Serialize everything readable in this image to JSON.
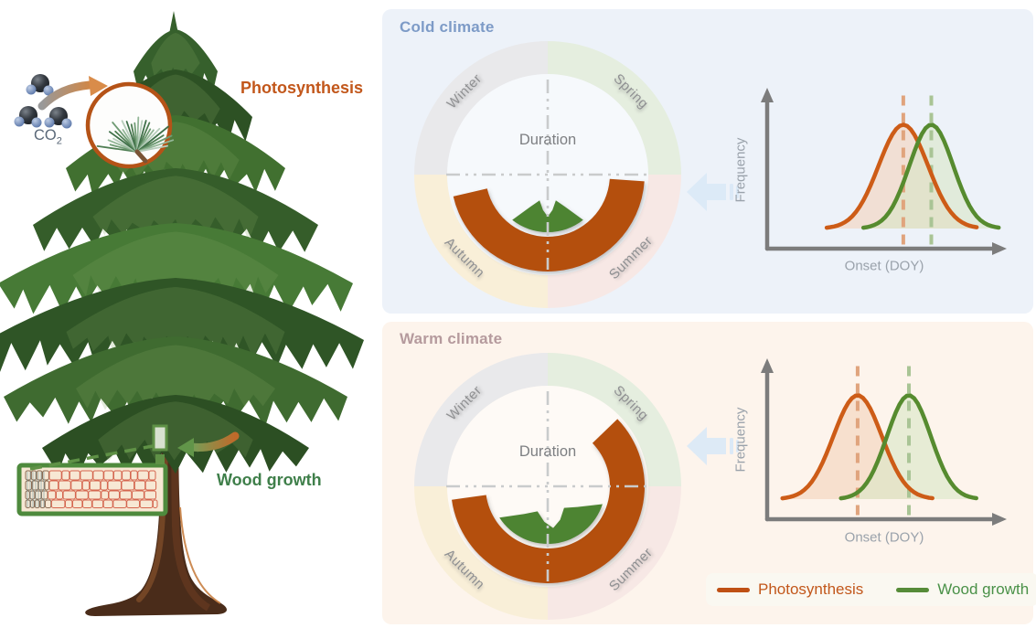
{
  "figure": {
    "left_illustration": {
      "co2": {
        "main": "CO",
        "sub": "2"
      },
      "photosynthesis_label": "Photosynthesis",
      "wood_growth_label": "Wood growth",
      "label_colors": {
        "photosynthesis": "#c2571b",
        "wood_growth": "#3f7f4a",
        "co2": "#5a6878"
      }
    },
    "panels": [
      {
        "id": "cold",
        "title": "Cold climate",
        "title_color": "#7d9bc7",
        "bg_color": "#edf2f9"
      },
      {
        "id": "warm",
        "title": "Warm climate",
        "title_color": "#b59a9d",
        "bg_color": "#fdf4ec"
      }
    ],
    "legend": {
      "items": [
        {
          "label": "Photosynthesis",
          "swatch_color": "#bf5014",
          "text_color": "#c2571b"
        },
        {
          "label": "Wood growth",
          "swatch_color": "#568b38",
          "text_color": "#4a9148"
        }
      ]
    },
    "block_arrow_color": "#dbe9f7"
  },
  "chart_data": [
    {
      "id": "cold-duration-wheel",
      "type": "polar-duration",
      "panel": "Cold climate",
      "center_label": "Duration",
      "season_ring": [
        {
          "label": "Winter",
          "quadrant": "top-left",
          "color": "#e9e9eb"
        },
        {
          "label": "Spring",
          "quadrant": "top-right",
          "color": "#e5eedf"
        },
        {
          "label": "Summer",
          "quadrant": "bottom-right",
          "color": "#f7e8e5"
        },
        {
          "label": "Autumn",
          "quadrant": "bottom-left",
          "color": "#f9efd8"
        }
      ],
      "series": [
        {
          "name": "Photosynthesis",
          "mark": "arc",
          "start_deg": 94,
          "end_deg": 257,
          "color": "#b44f10"
        },
        {
          "name": "Wood growth",
          "mark": "radial-area",
          "start_deg": 142,
          "end_deg": 218,
          "color": "#4e8433"
        }
      ]
    },
    {
      "id": "warm-duration-wheel",
      "type": "polar-duration",
      "panel": "Warm climate",
      "center_label": "Duration",
      "season_ring": [
        {
          "label": "Winter",
          "quadrant": "top-left",
          "color": "#e9e9eb"
        },
        {
          "label": "Spring",
          "quadrant": "top-right",
          "color": "#e5eedf"
        },
        {
          "label": "Summer",
          "quadrant": "bottom-right",
          "color": "#f7e8e5"
        },
        {
          "label": "Autumn",
          "quadrant": "bottom-left",
          "color": "#f9efd8"
        }
      ],
      "series": [
        {
          "name": "Photosynthesis",
          "mark": "arc",
          "start_deg": 46,
          "end_deg": 262,
          "color": "#b44f10"
        },
        {
          "name": "Wood growth",
          "mark": "radial-area",
          "start_deg": 108,
          "end_deg": 237,
          "color": "#4e8433"
        }
      ]
    },
    {
      "id": "cold-onset-distribution",
      "type": "area",
      "panel": "Cold climate",
      "xlabel": "Onset (DOY)",
      "ylabel": "Frequency",
      "series": [
        {
          "name": "Photosynthesis",
          "shape": "gaussian",
          "peak_x_fraction": 0.58,
          "sd_fraction": 0.106,
          "peak_height_fraction": 0.66,
          "line_color": "#cd5c17",
          "fill_color": "#f3d2bb",
          "mean_line_color": "#e0a47d"
        },
        {
          "name": "Wood growth",
          "shape": "gaussian",
          "peak_x_fraction": 0.7,
          "sd_fraction": 0.094,
          "peak_height_fraction": 0.66,
          "line_color": "#568b2f",
          "fill_color": "#d9e6c6",
          "mean_line_color": "#a9c495"
        }
      ]
    },
    {
      "id": "warm-onset-distribution",
      "type": "area",
      "panel": "Warm climate",
      "xlabel": "Onset (DOY)",
      "ylabel": "Frequency",
      "series": [
        {
          "name": "Photosynthesis",
          "shape": "gaussian",
          "peak_x_fraction": 0.384,
          "sd_fraction": 0.104,
          "peak_height_fraction": 0.66,
          "line_color": "#cd5c17",
          "fill_color": "#f3d2bb",
          "mean_line_color": "#e0a47d"
        },
        {
          "name": "Wood growth",
          "shape": "gaussian",
          "peak_x_fraction": 0.604,
          "sd_fraction": 0.094,
          "peak_height_fraction": 0.66,
          "line_color": "#568b2f",
          "fill_color": "#d9e6c6",
          "mean_line_color": "#a9c495"
        }
      ]
    }
  ]
}
